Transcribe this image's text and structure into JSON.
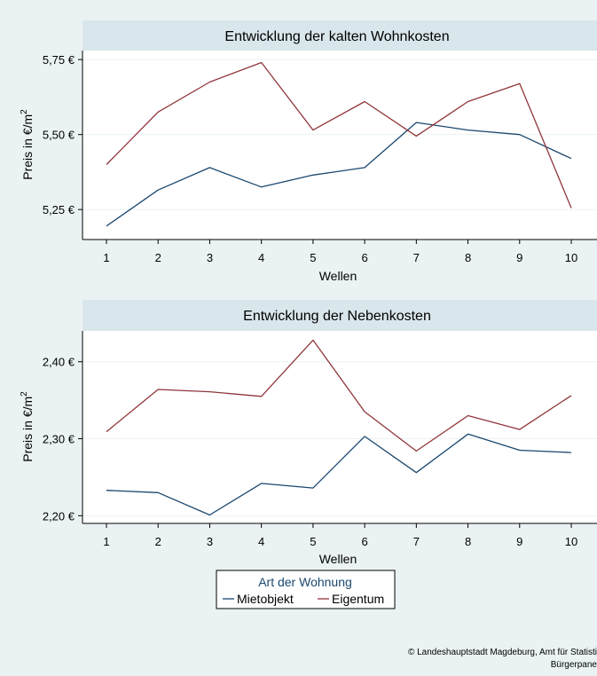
{
  "chart_data": [
    {
      "type": "line",
      "title": "Entwicklung der kalten Wohnkosten",
      "xlabel": "Wellen",
      "ylabel": "Preis in €/m",
      "ylabel_superscript": "2",
      "x": [
        1,
        2,
        3,
        4,
        5,
        6,
        7,
        8,
        9,
        10
      ],
      "xlim": [
        1,
        10
      ],
      "ylim": [
        5.15,
        5.78
      ],
      "yticks": [
        5.25,
        5.5,
        5.75
      ],
      "ytick_labels": [
        "5,25 €",
        "5,50 €",
        "5,75 €"
      ],
      "grid": true,
      "series": [
        {
          "name": "Mietobjekt",
          "color": "#1a476f",
          "values": [
            5.195,
            5.315,
            5.39,
            5.325,
            5.365,
            5.39,
            5.54,
            5.515,
            5.5,
            5.42
          ]
        },
        {
          "name": "Eigentum",
          "color": "#90353b",
          "values": [
            5.4,
            5.575,
            5.675,
            5.74,
            5.515,
            5.61,
            5.495,
            5.61,
            5.67,
            5.255
          ]
        }
      ]
    },
    {
      "type": "line",
      "title": "Entwicklung der Nebenkosten",
      "xlabel": "Wellen",
      "ylabel": "Preis in €/m",
      "ylabel_superscript": "2",
      "x": [
        1,
        2,
        3,
        4,
        5,
        6,
        7,
        8,
        9,
        10
      ],
      "xlim": [
        1,
        10
      ],
      "ylim": [
        2.19,
        2.44
      ],
      "yticks": [
        2.2,
        2.3,
        2.4
      ],
      "ytick_labels": [
        "2,20 €",
        "2,30 €",
        "2,40 €"
      ],
      "grid": true,
      "series": [
        {
          "name": "Mietobjekt",
          "color": "#1a476f",
          "values": [
            2.233,
            2.23,
            2.201,
            2.242,
            2.236,
            2.303,
            2.256,
            2.306,
            2.285,
            2.282
          ]
        },
        {
          "name": "Eigentum",
          "color": "#90353b",
          "values": [
            2.309,
            2.364,
            2.361,
            2.355,
            2.428,
            2.335,
            2.284,
            2.33,
            2.312,
            2.356
          ]
        }
      ]
    }
  ],
  "legend": {
    "title": "Art der Wohnung",
    "items": [
      {
        "label": "Mietobjekt",
        "color": "#1a476f"
      },
      {
        "label": "Eigentum",
        "color": "#90353b"
      }
    ]
  },
  "footer": {
    "line1": "© Landeshauptstadt Magdeburg, Amt für Statisti",
    "line2": "Bürgerpane"
  }
}
